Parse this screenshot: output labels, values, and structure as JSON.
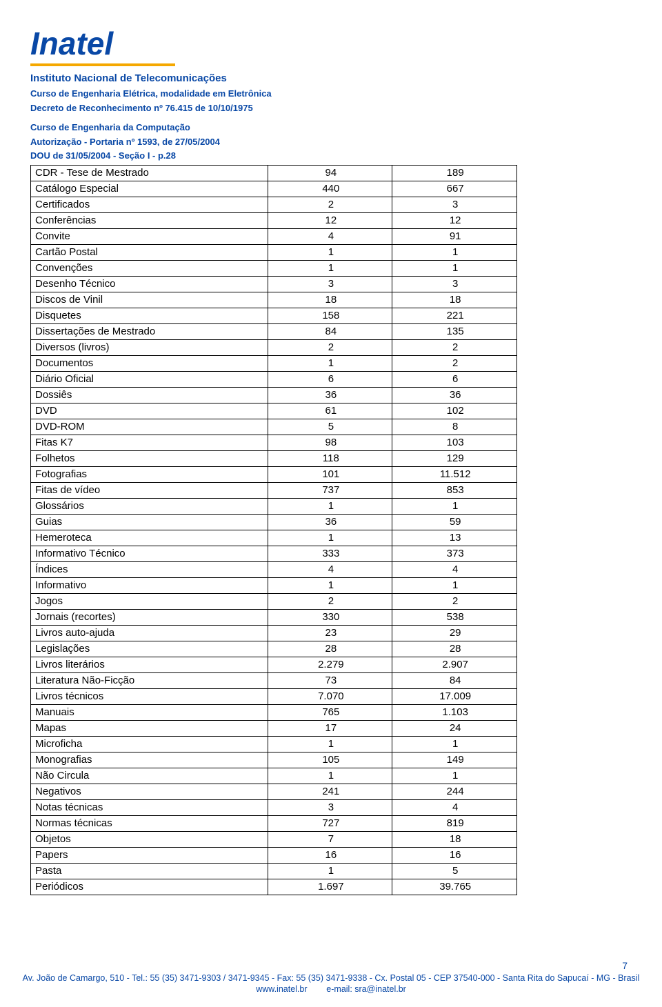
{
  "letterhead": {
    "logo": "Inatel",
    "line1": "Instituto Nacional de Telecomunicações",
    "line2": "Curso de Engenharia Elétrica, modalidade em Eletrônica",
    "line3": "Decreto de Reconhecimento nº 76.415 de 10/10/1975",
    "line4": "Curso de Engenharia da Computação",
    "line5": "Autorização - Portaria  nº 1593, de 27/05/2004",
    "line6": "DOU de 31/05/2004 - Seção I - p.28"
  },
  "table": {
    "rows": [
      {
        "label": "CDR - Tese de Mestrado",
        "c2": "94",
        "c3": "189"
      },
      {
        "label": "Catálogo Especial",
        "c2": "440",
        "c3": "667"
      },
      {
        "label": "Certificados",
        "c2": "2",
        "c3": "3"
      },
      {
        "label": "Conferências",
        "c2": "12",
        "c3": "12"
      },
      {
        "label": "Convite",
        "c2": "4",
        "c3": "91"
      },
      {
        "label": "Cartão Postal",
        "c2": "1",
        "c3": "1"
      },
      {
        "label": "Convenções",
        "c2": "1",
        "c3": "1"
      },
      {
        "label": "Desenho Técnico",
        "c2": "3",
        "c3": "3"
      },
      {
        "label": "Discos de Vinil",
        "c2": "18",
        "c3": "18"
      },
      {
        "label": "Disquetes",
        "c2": "158",
        "c3": "221"
      },
      {
        "label": "Dissertações de Mestrado",
        "c2": "84",
        "c3": "135"
      },
      {
        "label": "Diversos (livros)",
        "c2": "2",
        "c3": "2"
      },
      {
        "label": "Documentos",
        "c2": "1",
        "c3": "2"
      },
      {
        "label": "Diário Oficial",
        "c2": "6",
        "c3": "6"
      },
      {
        "label": "Dossiês",
        "c2": "36",
        "c3": "36"
      },
      {
        "label": "DVD",
        "c2": "61",
        "c3": "102"
      },
      {
        "label": "DVD-ROM",
        "c2": "5",
        "c3": "8"
      },
      {
        "label": "Fitas K7",
        "c2": "98",
        "c3": "103"
      },
      {
        "label": "Folhetos",
        "c2": "118",
        "c3": "129"
      },
      {
        "label": "Fotografias",
        "c2": "101",
        "c3": "11.512"
      },
      {
        "label": "Fitas de vídeo",
        "c2": "737",
        "c3": "853"
      },
      {
        "label": "Glossários",
        "c2": "1",
        "c3": "1"
      },
      {
        "label": "Guias",
        "c2": "36",
        "c3": "59"
      },
      {
        "label": "Hemeroteca",
        "c2": "1",
        "c3": "13"
      },
      {
        "label": "Informativo Técnico",
        "c2": "333",
        "c3": "373"
      },
      {
        "label": "Índices",
        "c2": "4",
        "c3": "4"
      },
      {
        "label": "Informativo",
        "c2": "1",
        "c3": "1"
      },
      {
        "label": "Jogos",
        "c2": "2",
        "c3": "2"
      },
      {
        "label": "Jornais (recortes)",
        "c2": "330",
        "c3": "538"
      },
      {
        "label": "Livros auto-ajuda",
        "c2": "23",
        "c3": "29"
      },
      {
        "label": "Legislações",
        "c2": "28",
        "c3": "28"
      },
      {
        "label": "Livros literários",
        "c2": "2.279",
        "c3": "2.907"
      },
      {
        "label": "Literatura Não-Ficção",
        "c2": "73",
        "c3": "84"
      },
      {
        "label": "Livros técnicos",
        "c2": "7.070",
        "c3": "17.009"
      },
      {
        "label": "Manuais",
        "c2": "765",
        "c3": "1.103"
      },
      {
        "label": "Mapas",
        "c2": "17",
        "c3": "24"
      },
      {
        "label": "Microficha",
        "c2": "1",
        "c3": "1"
      },
      {
        "label": "Monografias",
        "c2": "105",
        "c3": "149"
      },
      {
        "label": "Não Circula",
        "c2": "1",
        "c3": "1"
      },
      {
        "label": "Negativos",
        "c2": "241",
        "c3": "244"
      },
      {
        "label": "Notas técnicas",
        "c2": "3",
        "c3": "4"
      },
      {
        "label": "Normas técnicas",
        "c2": "727",
        "c3": "819"
      },
      {
        "label": "Objetos",
        "c2": "7",
        "c3": "18"
      },
      {
        "label": "Papers",
        "c2": "16",
        "c3": "16"
      },
      {
        "label": "Pasta",
        "c2": "1",
        "c3": "5"
      },
      {
        "label": "Periódicos",
        "c2": "1.697",
        "c3": "39.765"
      }
    ]
  },
  "page_number": "7",
  "footer": {
    "line1": "Av. João de Camargo, 510 - Tel.: 55 (35) 3471-9303 / 3471-9345 - Fax: 55 (35) 3471-9338 - Cx. Postal 05 - CEP 37540-000 - Santa Rita do Sapucaí - MG - Brasil",
    "line2": "www.inatel.br        e-mail: sra@inatel.br"
  },
  "colors": {
    "brand_blue": "#0948a6",
    "accent_orange": "#f5a800",
    "border": "#000000",
    "background": "#ffffff"
  }
}
